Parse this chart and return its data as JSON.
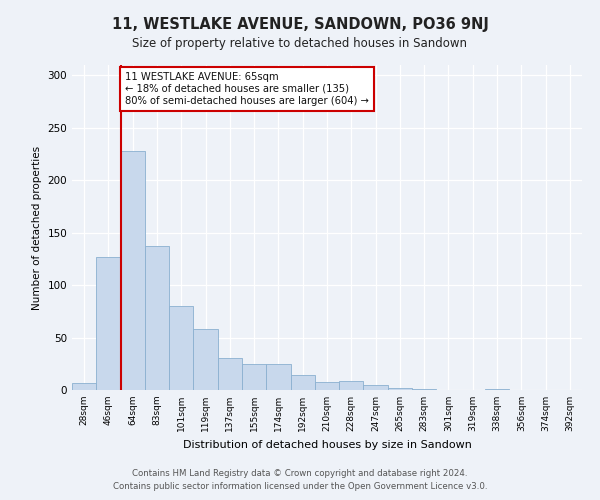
{
  "title": "11, WESTLAKE AVENUE, SANDOWN, PO36 9NJ",
  "subtitle": "Size of property relative to detached houses in Sandown",
  "xlabel": "Distribution of detached houses by size in Sandown",
  "ylabel": "Number of detached properties",
  "bar_labels": [
    "28sqm",
    "46sqm",
    "64sqm",
    "83sqm",
    "101sqm",
    "119sqm",
    "137sqm",
    "155sqm",
    "174sqm",
    "192sqm",
    "210sqm",
    "228sqm",
    "247sqm",
    "265sqm",
    "283sqm",
    "301sqm",
    "319sqm",
    "338sqm",
    "356sqm",
    "374sqm",
    "392sqm"
  ],
  "bar_values": [
    7,
    127,
    228,
    137,
    80,
    58,
    31,
    25,
    25,
    14,
    8,
    9,
    5,
    2,
    1,
    0,
    0,
    1,
    0,
    0,
    0
  ],
  "bar_color": "#c8d8ec",
  "bar_edge_color": "#8ab0d0",
  "property_line_color": "#cc0000",
  "annotation_line1": "11 WESTLAKE AVENUE: 65sqm",
  "annotation_line2": "← 18% of detached houses are smaller (135)",
  "annotation_line3": "80% of semi-detached houses are larger (604) →",
  "annotation_box_color": "#ffffff",
  "annotation_box_edge_color": "#cc0000",
  "ylim": [
    0,
    310
  ],
  "yticks": [
    0,
    50,
    100,
    150,
    200,
    250,
    300
  ],
  "footer_line1": "Contains HM Land Registry data © Crown copyright and database right 2024.",
  "footer_line2": "Contains public sector information licensed under the Open Government Licence v3.0.",
  "bg_color": "#eef2f8",
  "grid_color": "#ffffff"
}
